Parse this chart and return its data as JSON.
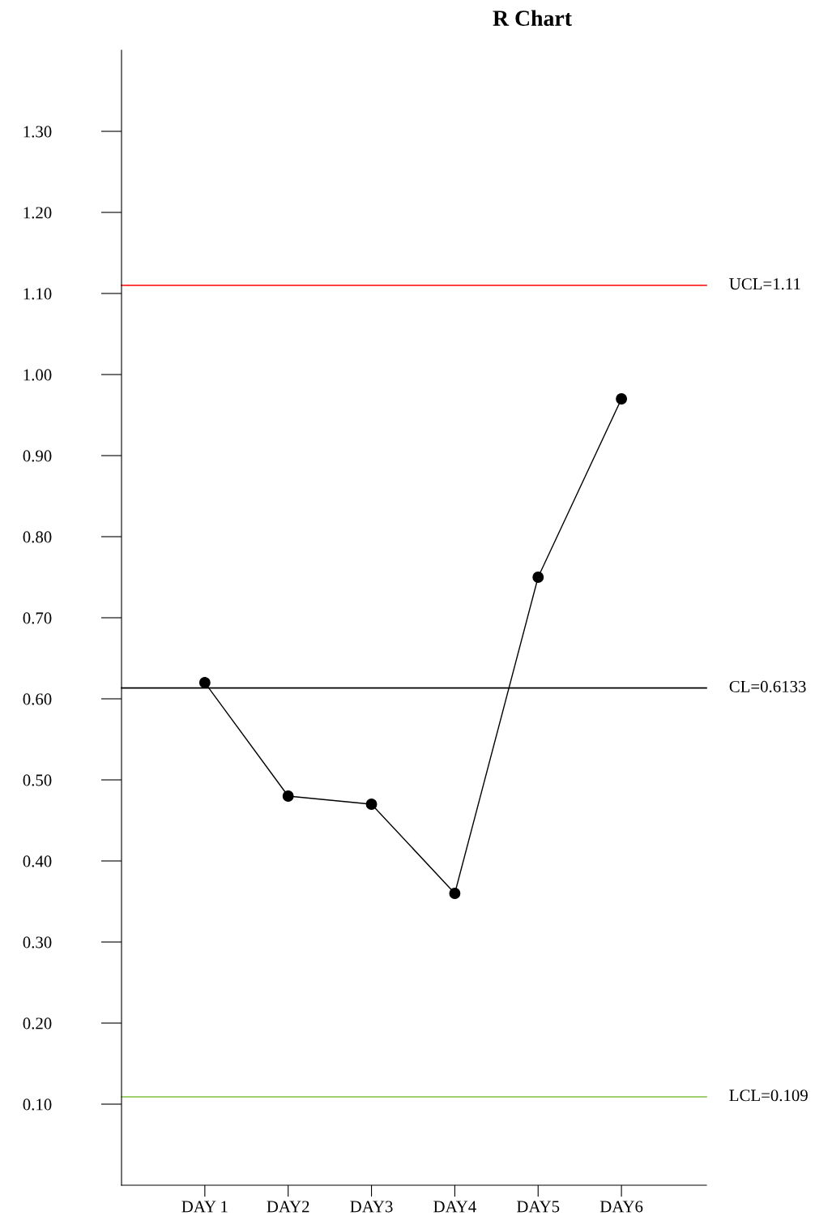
{
  "chart_data": {
    "type": "line",
    "title": "R Chart",
    "categories": [
      "DAY 1",
      "DAY2",
      "DAY3",
      "DAY4",
      "DAY5",
      "DAY6"
    ],
    "series": [
      {
        "color": "#000000",
        "values": [
          0.62,
          0.48,
          0.47,
          0.36,
          0.75,
          0.97
        ]
      }
    ],
    "marker": "circle",
    "line_style": "solid",
    "grid": false,
    "legend": false,
    "ylim": [
      0,
      1.4
    ],
    "yticks": [
      {
        "value": 0.1,
        "label": "0.10"
      },
      {
        "value": 0.2,
        "label": "0.20"
      },
      {
        "value": 0.3,
        "label": "0.30"
      },
      {
        "value": 0.4,
        "label": "0.40"
      },
      {
        "value": 0.5,
        "label": "0.50"
      },
      {
        "value": 0.6,
        "label": "0.60"
      },
      {
        "value": 0.7,
        "label": "0.70"
      },
      {
        "value": 0.8,
        "label": "0.80"
      },
      {
        "value": 0.9,
        "label": "0.90"
      },
      {
        "value": 1.0,
        "label": "1.00"
      },
      {
        "value": 1.1,
        "label": "1.10"
      },
      {
        "value": 1.2,
        "label": "1.20"
      },
      {
        "value": 1.3,
        "label": "1.30"
      }
    ],
    "ref_lines": [
      {
        "axis": "y",
        "value": 1.11,
        "label": "UCL=1.11",
        "color": "#ff0000"
      },
      {
        "axis": "y",
        "value": 0.6133,
        "label": "CL=0.6133",
        "color": "#000000"
      },
      {
        "axis": "y",
        "value": 0.109,
        "label": "LCL=0.109",
        "color": "#80c040"
      }
    ]
  }
}
